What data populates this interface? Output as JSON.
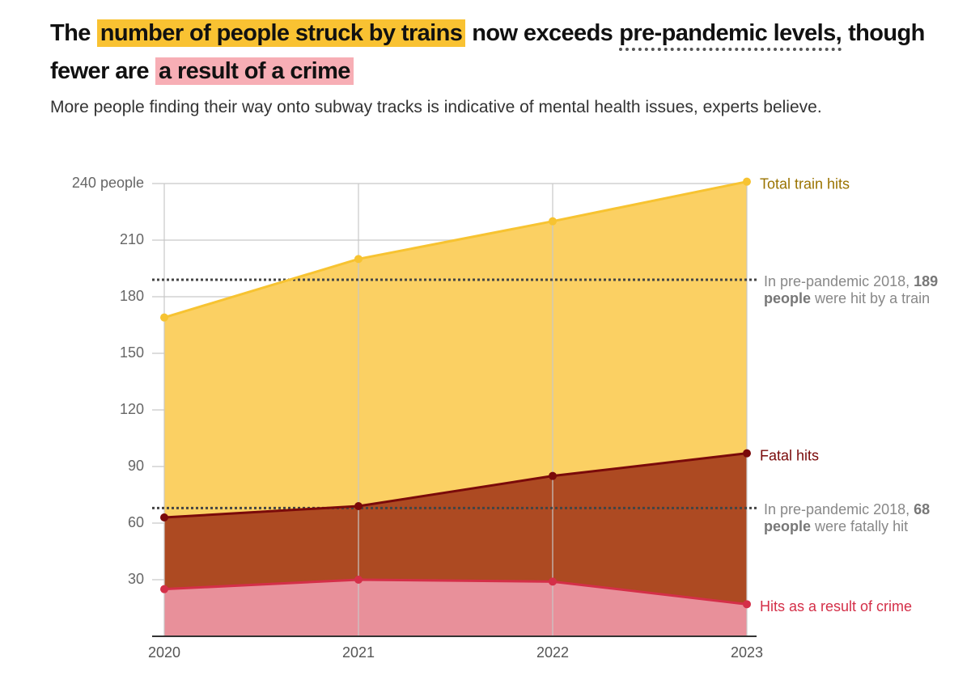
{
  "chart_data": {
    "type": "area",
    "title": [
      {
        "text": "The",
        "highlight": null
      },
      {
        "text": "number of people struck by trains",
        "highlight": "#f9c232"
      },
      {
        "text": "now exceeds",
        "highlight": null
      },
      {
        "text": "pre-pandemic levels,",
        "highlight": "dotted"
      },
      {
        "text": "though fewer are",
        "highlight": null
      },
      {
        "text": "a result of a crime",
        "highlight": "#f7aeb5"
      }
    ],
    "subtitle": "More people finding their way onto subway tracks is indicative of mental health issues, experts believe.",
    "categories": [
      "2020",
      "2021",
      "2022",
      "2023"
    ],
    "series": [
      {
        "name": "Total train hits",
        "color": "#f7c331",
        "fill": "#fbd063",
        "label_color": "#9a7300",
        "values": [
          169,
          200,
          220,
          241
        ]
      },
      {
        "name": "Fatal hits",
        "color": "#7a0a0a",
        "fill": "#ad4a22",
        "label_color": "#7a0a0a",
        "values": [
          63,
          69,
          85,
          97
        ]
      },
      {
        "name": "Hits as a result of crime",
        "color": "#d42f48",
        "fill": "#e8909a",
        "label_color": "#d42f48",
        "values": [
          25,
          30,
          29,
          17
        ]
      }
    ],
    "ylim": [
      0,
      240
    ],
    "yticks": [
      30,
      60,
      90,
      120,
      150,
      180,
      210,
      {
        "value": 240,
        "label": "240 people"
      }
    ],
    "grid": true,
    "reference_lines": [
      {
        "value": 189,
        "text": [
          "In pre-pandemic 2018,",
          "189 people",
          "were hit by a train"
        ]
      },
      {
        "value": 68,
        "text": [
          "In pre-pandemic 2018,",
          "68 people",
          "were fatally hit"
        ]
      }
    ]
  }
}
